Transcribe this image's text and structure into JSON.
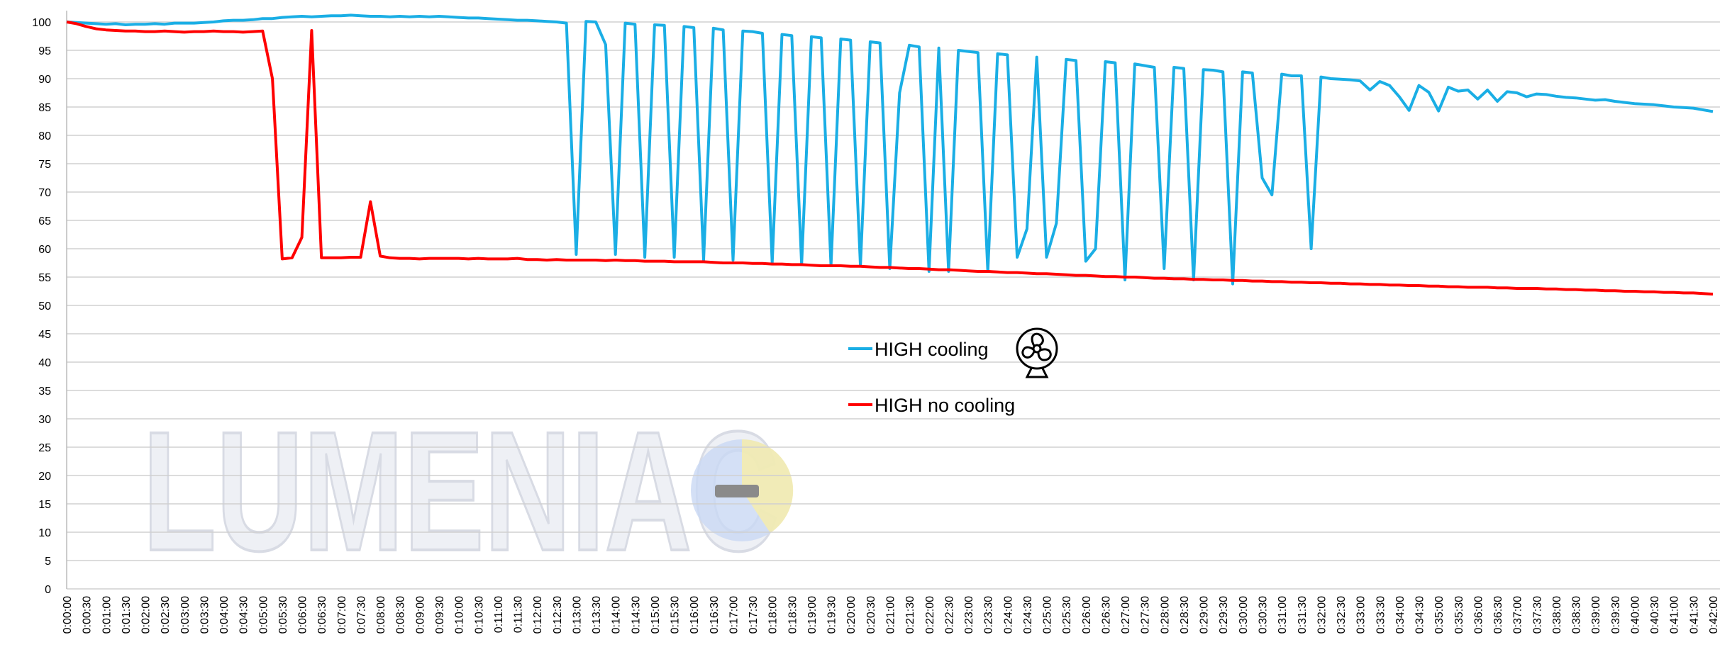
{
  "chart_data": {
    "type": "line",
    "watermark": "LUMENIAC",
    "categories": [
      "0:00:00",
      null,
      "0:00:30",
      null,
      "0:01:00",
      null,
      "0:01:30",
      null,
      "0:02:00",
      null,
      "0:02:30",
      null,
      "0:03:00",
      null,
      "0:03:30",
      null,
      "0:04:00",
      null,
      "0:04:30",
      null,
      "0:05:00",
      null,
      "0:05:30",
      null,
      "0:06:00",
      null,
      "0:06:30",
      null,
      "0:07:00",
      null,
      "0:07:30",
      null,
      "0:08:00",
      null,
      "0:08:30",
      null,
      "0:09:00",
      null,
      "0:09:30",
      null,
      "0:10:00",
      null,
      "0:10:30",
      null,
      "0:11:00",
      null,
      "0:11:30",
      null,
      "0:12:00",
      null,
      "0:12:30",
      null,
      "0:13:00",
      null,
      "0:13:30",
      null,
      "0:14:00",
      null,
      "0:14:30",
      null,
      "0:15:00",
      null,
      "0:15:30",
      null,
      "0:16:00",
      null,
      "0:16:30",
      null,
      "0:17:00",
      null,
      "0:17:30",
      null,
      "0:18:00",
      null,
      "0:18:30",
      null,
      "0:19:00",
      null,
      "0:19:30",
      null,
      "0:20:00",
      null,
      "0:20:30",
      null,
      "0:21:00",
      null,
      "0:21:30",
      null,
      "0:22:00",
      null,
      "0:22:30",
      null,
      "0:23:00",
      null,
      "0:23:30",
      null,
      "0:24:00",
      null,
      "0:24:30",
      null,
      "0:25:00",
      null,
      "0:25:30",
      null,
      "0:26:00",
      null,
      "0:26:30",
      null,
      "0:27:00",
      null,
      "0:27:30",
      null,
      "0:28:00",
      null,
      "0:28:30",
      null,
      "0:29:00",
      null,
      "0:29:30",
      null,
      "0:30:00",
      null,
      "0:30:30",
      null,
      "0:31:00",
      null,
      "0:31:30",
      null,
      "0:32:00",
      null,
      "0:32:30",
      null,
      "0:33:00",
      null,
      "0:33:30",
      null,
      "0:34:00",
      null,
      "0:34:30",
      null,
      "0:35:00",
      null,
      "0:35:30",
      null,
      "0:36:00",
      null,
      "0:36:30",
      null,
      "0:37:00",
      null,
      "0:37:30",
      null,
      "0:38:00",
      null,
      "0:38:30",
      null,
      "0:39:00",
      null,
      "0:39:30",
      null,
      "0:40:00",
      null,
      "0:40:30",
      null,
      "0:41:00",
      null,
      "0:41:30",
      null,
      "0:42:00"
    ],
    "series": [
      {
        "name": "HIGH cooling",
        "color": "#1aaee5",
        "values": [
          100,
          99.9,
          99.8,
          99.7,
          99.6,
          99.7,
          99.5,
          99.6,
          99.6,
          99.7,
          99.6,
          99.8,
          99.8,
          99.8,
          99.9,
          100,
          100.2,
          100.3,
          100.3,
          100.4,
          100.6,
          100.6,
          100.8,
          100.9,
          101,
          100.9,
          101,
          101.1,
          101.1,
          101.2,
          101.1,
          101,
          101,
          100.9,
          101,
          100.9,
          101,
          100.9,
          101,
          100.9,
          100.8,
          100.7,
          100.7,
          100.6,
          100.5,
          100.4,
          100.3,
          100.3,
          100.2,
          100.1,
          100,
          99.8,
          59,
          100.1,
          100,
          96,
          59,
          99.8,
          99.6,
          58.5,
          99.5,
          99.4,
          58.5,
          99.2,
          99,
          58,
          98.9,
          98.6,
          58,
          98.4,
          98.3,
          98,
          57.5,
          97.8,
          97.6,
          57.2,
          97.4,
          97.2,
          57,
          97,
          96.8,
          57,
          96.5,
          96.3,
          56.5,
          87.5,
          95.9,
          95.6,
          56,
          95.4,
          56,
          95,
          94.8,
          94.6,
          56,
          94.4,
          94.2,
          58.5,
          63.5,
          93.8,
          58.5,
          64.5,
          93.4,
          93.2,
          57.8,
          60,
          93,
          92.8,
          54.5,
          92.6,
          92.3,
          92,
          56.5,
          92,
          91.8,
          54.5,
          91.6,
          91.5,
          91.2,
          53.8,
          91.2,
          91,
          72.5,
          69.5,
          90.8,
          90.5,
          90.5,
          60,
          90.3,
          90,
          89.9,
          89.8,
          89.6,
          88,
          89.5,
          88.8,
          86.8,
          84.4,
          88.8,
          87.6,
          84.3,
          88.5,
          87.8,
          88,
          86.4,
          88,
          86,
          87.7,
          87.5,
          86.8,
          87.3,
          87.2,
          86.9,
          86.7,
          86.6,
          86.4,
          86.2,
          86.3,
          86,
          85.8,
          85.6,
          85.5,
          85.4,
          85.2,
          85,
          84.9,
          84.8,
          84.5,
          84.2
        ]
      },
      {
        "name": "HIGH no cooling",
        "color": "#ff0000",
        "values": [
          100,
          99.7,
          99.2,
          98.8,
          98.6,
          98.5,
          98.4,
          98.4,
          98.3,
          98.3,
          98.4,
          98.3,
          98.2,
          98.3,
          98.3,
          98.4,
          98.3,
          98.3,
          98.2,
          98.3,
          98.4,
          90,
          58.2,
          58.4,
          62,
          98.5,
          58.4,
          58.4,
          58.4,
          58.5,
          58.5,
          68.3,
          58.7,
          58.4,
          58.3,
          58.3,
          58.2,
          58.3,
          58.3,
          58.3,
          58.3,
          58.2,
          58.3,
          58.2,
          58.2,
          58.2,
          58.3,
          58.1,
          58.1,
          58,
          58.1,
          58,
          58,
          58,
          58,
          57.9,
          58,
          57.9,
          57.9,
          57.8,
          57.8,
          57.8,
          57.7,
          57.7,
          57.7,
          57.7,
          57.6,
          57.5,
          57.5,
          57.5,
          57.4,
          57.4,
          57.3,
          57.3,
          57.2,
          57.2,
          57.1,
          57,
          57,
          57,
          56.9,
          56.9,
          56.8,
          56.7,
          56.7,
          56.6,
          56.5,
          56.5,
          56.4,
          56.3,
          56.3,
          56.2,
          56.1,
          56,
          56,
          55.9,
          55.8,
          55.8,
          55.7,
          55.6,
          55.6,
          55.5,
          55.4,
          55.3,
          55.3,
          55.2,
          55.1,
          55.1,
          55,
          55,
          54.9,
          54.8,
          54.8,
          54.7,
          54.7,
          54.6,
          54.6,
          54.5,
          54.5,
          54.4,
          54.4,
          54.3,
          54.3,
          54.2,
          54.2,
          54.1,
          54.1,
          54,
          54,
          53.9,
          53.9,
          53.8,
          53.8,
          53.7,
          53.7,
          53.6,
          53.6,
          53.5,
          53.5,
          53.4,
          53.4,
          53.3,
          53.3,
          53.2,
          53.2,
          53.2,
          53.1,
          53.1,
          53,
          53,
          53,
          52.9,
          52.9,
          52.8,
          52.8,
          52.7,
          52.7,
          52.6,
          52.6,
          52.5,
          52.5,
          52.4,
          52.4,
          52.3,
          52.3,
          52.2,
          52.2,
          52.1,
          52
        ]
      }
    ],
    "ylim": [
      0,
      102
    ],
    "yticks": [
      0,
      5,
      10,
      15,
      20,
      25,
      30,
      35,
      40,
      45,
      50,
      55,
      60,
      65,
      70,
      75,
      80,
      85,
      90,
      95,
      100
    ],
    "grid": true
  }
}
